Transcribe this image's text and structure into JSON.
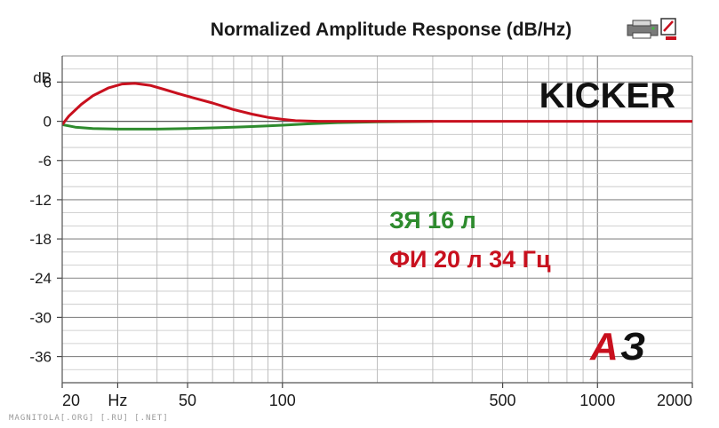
{
  "chart_data": {
    "type": "line",
    "title": "Normalized Amplitude Response (dB/Hz)",
    "y_unit": "dB",
    "x_scale": "log",
    "xlim": [
      20,
      2000
    ],
    "ylim": [
      -40,
      10
    ],
    "x_ticks": [
      {
        "value": 20,
        "label": "20"
      },
      {
        "value": 30,
        "label": "Hz"
      },
      {
        "value": 50,
        "label": "50"
      },
      {
        "value": 100,
        "label": "100"
      },
      {
        "value": 500,
        "label": "500"
      },
      {
        "value": 1000,
        "label": "1000"
      },
      {
        "value": 2000,
        "label": "2000"
      }
    ],
    "y_ticks": [
      6,
      0,
      -6,
      -12,
      -18,
      -24,
      -30,
      -36
    ],
    "y_tick_labels": [
      "6",
      "0",
      "-6",
      "-12",
      "-18",
      "-24",
      "-30",
      "-36"
    ],
    "grid": true,
    "brand_label": "KICKER",
    "series": [
      {
        "name": "ЗЯ 16 л",
        "color": "#2e8b2e",
        "x": [
          20,
          22,
          25,
          30,
          40,
          50,
          60,
          70,
          80,
          90,
          100,
          120,
          150,
          200,
          300
        ],
        "y": [
          -0.5,
          -0.9,
          -1.1,
          -1.2,
          -1.2,
          -1.1,
          -1.0,
          -0.9,
          -0.8,
          -0.7,
          -0.6,
          -0.4,
          -0.2,
          -0.1,
          0
        ]
      },
      {
        "name": "ФИ 20 л 34 Гц",
        "color": "#c8101e",
        "x": [
          20,
          21,
          23,
          25,
          28,
          31,
          34,
          38,
          42,
          47,
          52,
          60,
          70,
          80,
          90,
          100,
          110,
          130,
          160,
          200,
          500,
          1000,
          2000
        ],
        "y": [
          -0.5,
          0.8,
          2.6,
          3.9,
          5.1,
          5.7,
          5.8,
          5.5,
          4.9,
          4.2,
          3.6,
          2.8,
          1.8,
          1.1,
          0.6,
          0.3,
          0.1,
          0,
          0,
          0,
          0,
          0,
          0
        ]
      }
    ]
  },
  "logo": {
    "text": "АЗ",
    "color_a": "#c8101e",
    "color_z": "#111111"
  },
  "toolbar": {
    "icons": [
      "printer-icon",
      "close-chart-icon"
    ]
  },
  "watermark": "MAGNITOLA[.ORG] [.RU] [.NET]"
}
